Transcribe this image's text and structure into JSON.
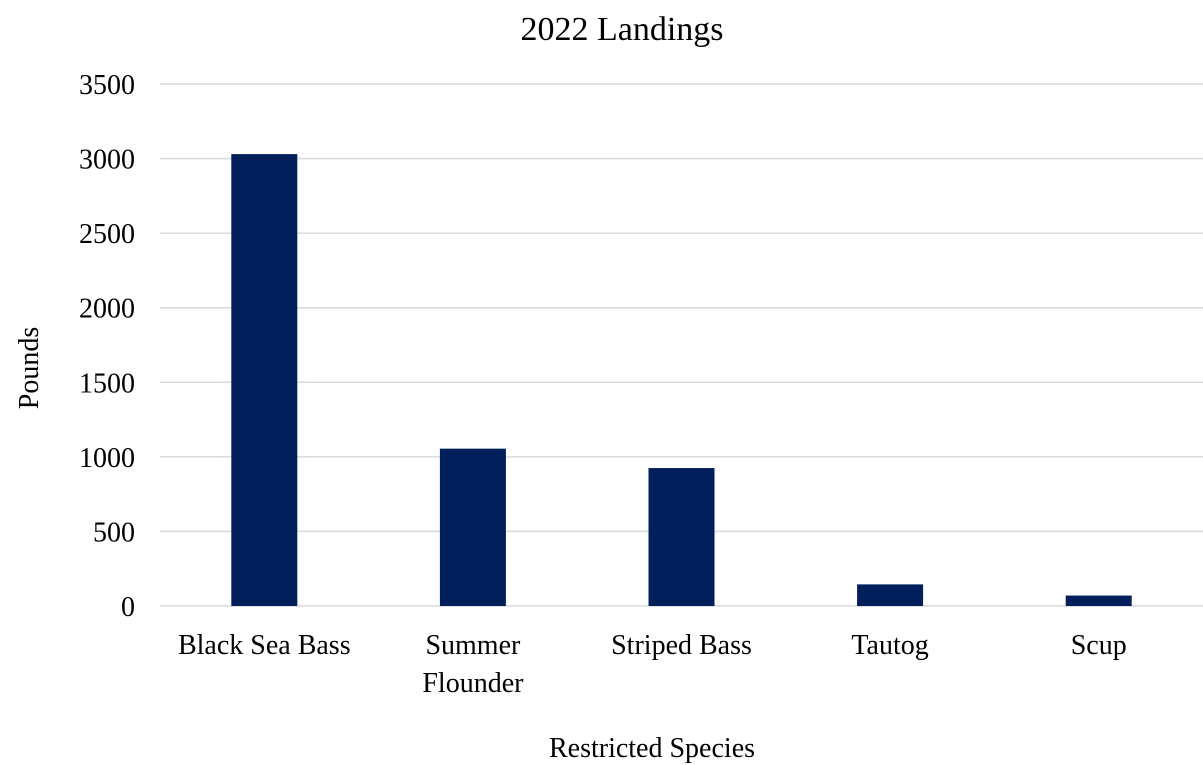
{
  "chart_data": {
    "type": "bar",
    "title": "2022 Landings",
    "xlabel": "Restricted Species",
    "ylabel": "Pounds",
    "categories": [
      [
        "Black Sea Bass"
      ],
      [
        "Summer",
        "Flounder"
      ],
      [
        "Striped Bass"
      ],
      [
        "Tautog"
      ],
      [
        "Scup"
      ]
    ],
    "values": [
      3030,
      1055,
      925,
      145,
      70
    ],
    "ylim": [
      0,
      3500
    ],
    "yticks": [
      0,
      500,
      1000,
      1500,
      2000,
      2500,
      3000,
      3500
    ],
    "grid": true,
    "legend": "none",
    "bar_color": "#001f5b",
    "grid_color": "#d9d9d9"
  }
}
